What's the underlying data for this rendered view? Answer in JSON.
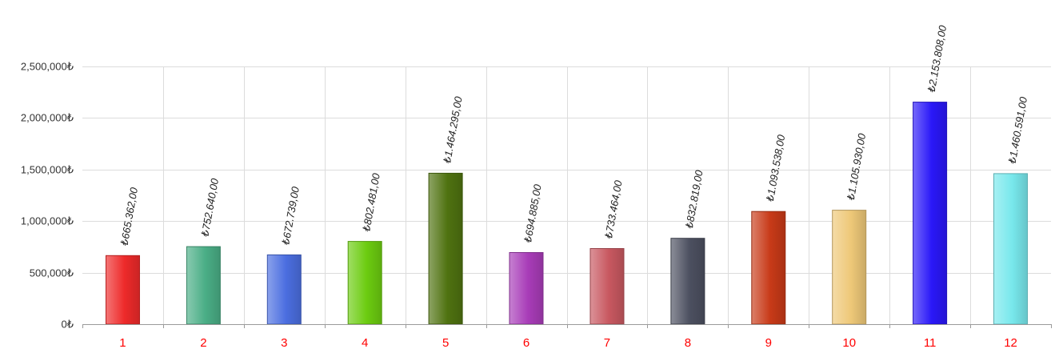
{
  "chart_data": {
    "type": "bar",
    "title": "",
    "xlabel": "",
    "ylabel": "",
    "ylim": [
      0,
      2500000
    ],
    "grid": true,
    "legend": "none",
    "y_ticks": [
      {
        "value": 0,
        "label": "0₺"
      },
      {
        "value": 500000,
        "label": "500,000₺"
      },
      {
        "value": 1000000,
        "label": "1,000,000₺"
      },
      {
        "value": 1500000,
        "label": "1,500,000₺"
      },
      {
        "value": 2000000,
        "label": "2,000,000₺"
      },
      {
        "value": 2500000,
        "label": "2,500,000₺"
      }
    ],
    "categories": [
      "1",
      "2",
      "3",
      "4",
      "5",
      "6",
      "7",
      "8",
      "9",
      "10",
      "11",
      "12"
    ],
    "values": [
      665362,
      752640,
      672739,
      802481,
      1464295,
      694885,
      733464,
      832819,
      1093538,
      1105930,
      2153808,
      1460591
    ],
    "data_labels": [
      "₺665.362,00",
      "₺752.640,00",
      "₺672.739,00",
      "₺802.481,00",
      "₺1.464.295,00",
      "₺694.885,00",
      "₺733.464,00",
      "₺832.819,00",
      "₺1.093.538,00",
      "₺1.105.930,00",
      "₺2.153.808,00",
      "₺1.460.591,00"
    ],
    "colors": [
      "#ee2a2a",
      "#4aae86",
      "#4b6ee0",
      "#6ccc10",
      "#4f7210",
      "#a83cb8",
      "#c85860",
      "#4c5060",
      "#c83a18",
      "#eec878",
      "#2a18f8",
      "#78e8ec"
    ],
    "x_tick_color": "#ff0000"
  }
}
